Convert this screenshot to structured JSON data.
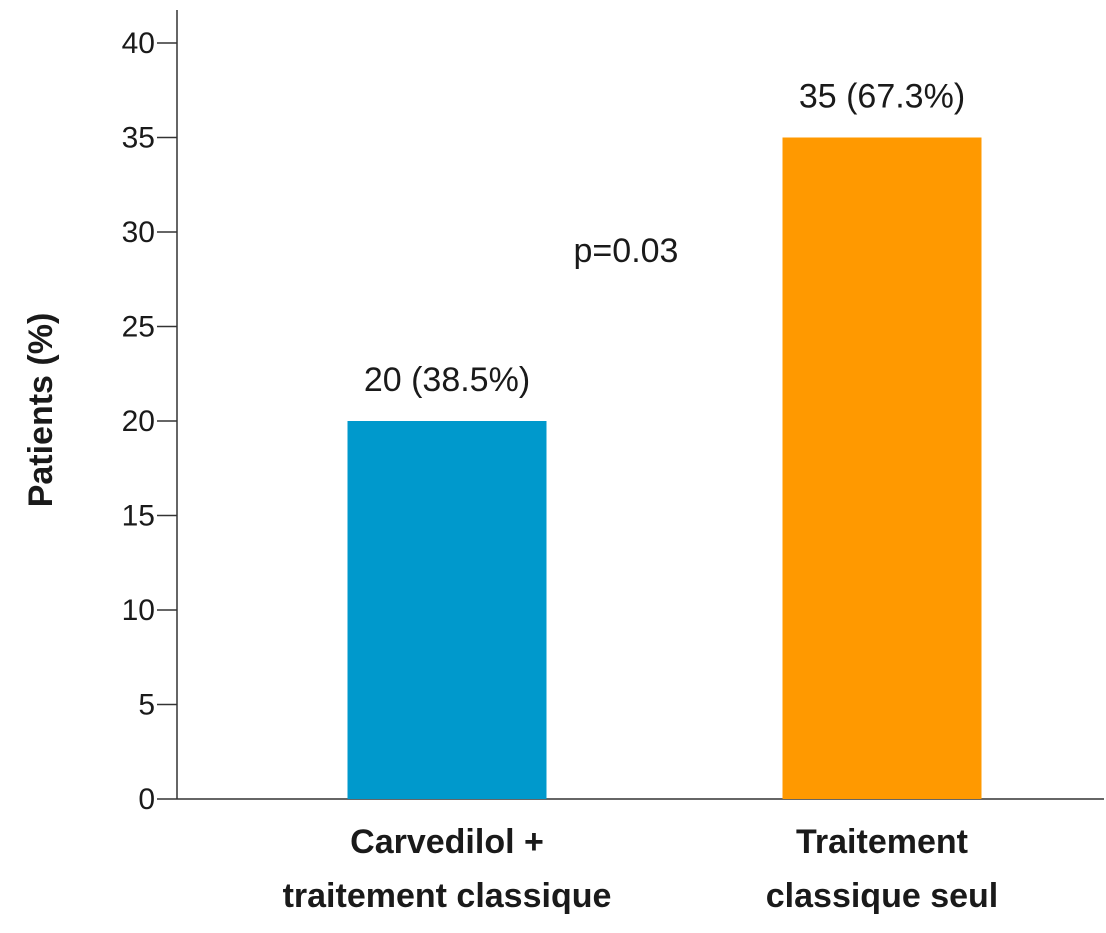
{
  "chart_data": {
    "type": "bar",
    "categories": [
      [
        "Carvedilol +",
        "traitement classique"
      ],
      [
        "Traitement",
        "classique seul"
      ]
    ],
    "values": [
      20,
      35
    ],
    "data_labels": [
      "20 (38.5%)",
      "35 (67.3%)"
    ],
    "bar_colors": [
      "#0099cc",
      "#ff9900"
    ],
    "ylabel": "Patients (%)",
    "xlabel": "",
    "title": "",
    "ylim": [
      0,
      40
    ],
    "yticks": [
      0,
      5,
      10,
      15,
      20,
      25,
      30,
      35,
      40
    ],
    "annotation": "p=0.03",
    "grid": false,
    "legend": "none"
  }
}
